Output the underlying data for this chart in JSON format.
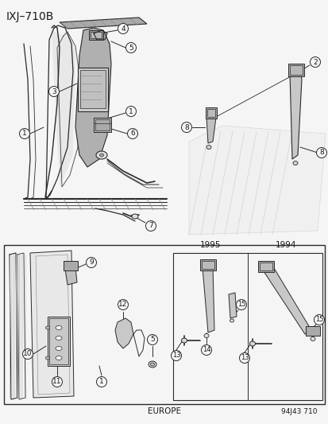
{
  "title": "IXJ–710B",
  "bg_color": "#f5f5f5",
  "line_color": "#2a2a2a",
  "text_color": "#1a1a1a",
  "footer_left": "EUROPE",
  "footer_right": "94J43 710",
  "year_1995": "1995",
  "year_1994": "1994",
  "fig_width": 4.14,
  "fig_height": 5.33,
  "dpi": 100
}
